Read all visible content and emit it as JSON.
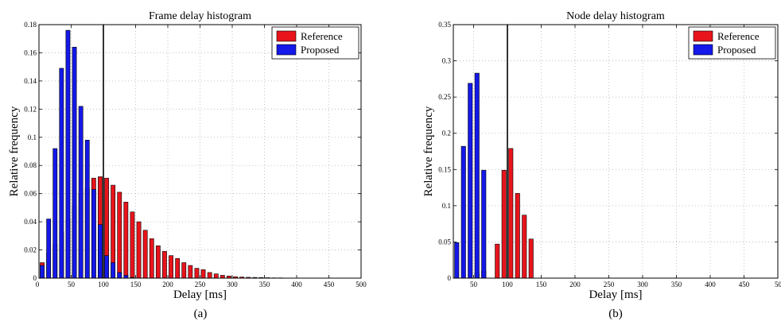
{
  "chart_data": [
    {
      "type": "bar",
      "title": "Frame delay histogram",
      "xlabel": "Delay [ms]",
      "ylabel": "Relative frequency",
      "caption": "(a)",
      "xlim": [
        0,
        500
      ],
      "ylim": [
        0,
        0.18
      ],
      "xticks": [
        50,
        100,
        150,
        200,
        250,
        300,
        350,
        400,
        450,
        500
      ],
      "yticks": [
        0,
        0.02,
        0.04,
        0.06,
        0.08,
        0.1,
        0.12,
        0.14,
        0.16,
        0.18
      ],
      "ytick_labels": [
        "0",
        "0.02",
        "0.04",
        "0.06",
        "0.08",
        "0.1",
        "0.12",
        "0.14",
        "0.16",
        "0.18"
      ],
      "bin_width": 10,
      "grid": true,
      "legend_position": "top-right",
      "vline": 100,
      "series": [
        {
          "name": "Reference",
          "color": "#e8141c",
          "x": [
            5,
            15,
            25,
            35,
            45,
            55,
            65,
            75,
            85,
            95,
            105,
            115,
            125,
            135,
            145,
            155,
            165,
            175,
            185,
            195,
            205,
            215,
            225,
            235,
            245,
            255,
            265,
            275,
            285,
            295,
            305,
            315,
            325,
            335,
            345,
            355,
            365,
            375,
            385,
            395,
            405,
            415,
            425,
            435,
            445,
            455,
            465,
            475,
            485,
            495
          ],
          "values": [
            0.011,
            0.018,
            0.024,
            0.033,
            0.042,
            0.051,
            0.06,
            0.064,
            0.071,
            0.072,
            0.071,
            0.066,
            0.061,
            0.054,
            0.047,
            0.04,
            0.034,
            0.028,
            0.023,
            0.019,
            0.016,
            0.014,
            0.011,
            0.009,
            0.007,
            0.006,
            0.004,
            0.003,
            0.002,
            0.0015,
            0.001,
            0.0008,
            0.0006,
            0.0005,
            0.0004,
            0.0003,
            0.0002,
            0.0002,
            0.0001,
            0.0001,
            0.0001,
            0.0001,
            0.0001,
            0.0001,
            0.0001,
            0.0001,
            0.0001,
            0.0001,
            0.0001,
            0.0001
          ]
        },
        {
          "name": "Proposed",
          "color": "#1418e8",
          "x": [
            5,
            15,
            25,
            35,
            45,
            55,
            65,
            75,
            85,
            95,
            105,
            115,
            125,
            135,
            145
          ],
          "values": [
            0.009,
            0.042,
            0.092,
            0.149,
            0.176,
            0.164,
            0.122,
            0.098,
            0.063,
            0.038,
            0.016,
            0.011,
            0.004,
            0.002,
            0.0005
          ]
        }
      ]
    },
    {
      "type": "bar",
      "title": "Node delay histogram",
      "xlabel": "Delay [ms]",
      "ylabel": "Relative frequency",
      "caption": "(b)",
      "xlim": [
        20,
        500
      ],
      "ylim": [
        0,
        0.35
      ],
      "xticks": [
        50,
        100,
        150,
        200,
        250,
        300,
        350,
        400,
        450,
        500
      ],
      "yticks": [
        0,
        0.05,
        0.1,
        0.15,
        0.2,
        0.25,
        0.3,
        0.35
      ],
      "ytick_labels": [
        "0",
        "0.05",
        "0.1",
        "0.15",
        "0.2",
        "0.25",
        "0.3",
        "0.35"
      ],
      "bin_width": 10,
      "grid": true,
      "legend_position": "top-right",
      "vline": 100,
      "series": [
        {
          "name": "Reference",
          "color": "#e8141c",
          "x": [
            55,
            65,
            85,
            95,
            105,
            115,
            125,
            135
          ],
          "values": [
            0.007,
            0.01,
            0.047,
            0.149,
            0.179,
            0.117,
            0.087,
            0.054
          ]
        },
        {
          "name": "Proposed",
          "color": "#1418e8",
          "x": [
            25,
            35,
            45,
            55,
            65
          ],
          "values": [
            0.049,
            0.182,
            0.269,
            0.283,
            0.149
          ]
        }
      ]
    }
  ]
}
